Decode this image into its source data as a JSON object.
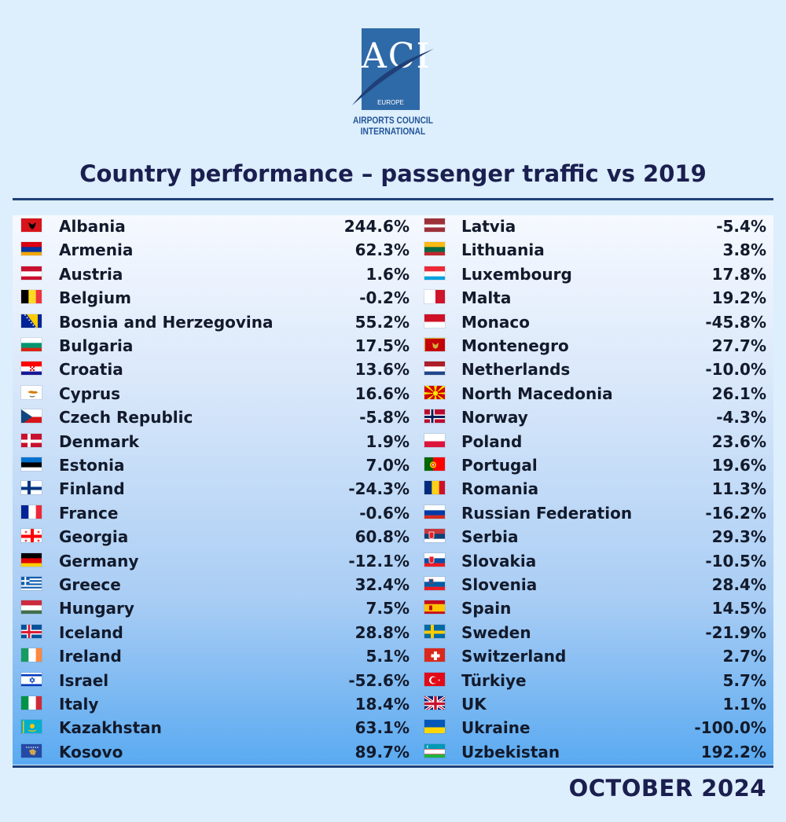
{
  "logo": {
    "mark": "ACI",
    "region": "EUROPE",
    "line1": "AIRPORTS COUNCIL",
    "line2": "INTERNATIONAL"
  },
  "title": "Country performance – passenger traffic vs 2019",
  "footer": "OCTOBER 2024",
  "chart_data": {
    "type": "table",
    "title": "Country performance – passenger traffic vs 2019",
    "columns": [
      [
        {
          "country": "Albania",
          "value": "244.6%",
          "flag": {
            "type": "solid",
            "colors": [
              "#d7141a"
            ],
            "emblem": "black-eagle"
          }
        },
        {
          "country": "Armenia",
          "value": "62.3%",
          "flag": {
            "type": "h",
            "colors": [
              "#d90012",
              "#0033a0",
              "#f2a800"
            ]
          }
        },
        {
          "country": "Austria",
          "value": "1.6%",
          "flag": {
            "type": "h",
            "colors": [
              "#c8102e",
              "#ffffff",
              "#c8102e"
            ]
          }
        },
        {
          "country": "Belgium",
          "value": "-0.2%",
          "flag": {
            "type": "v",
            "colors": [
              "#000000",
              "#fdda24",
              "#ef3340"
            ]
          }
        },
        {
          "country": "Bosnia and Herzegovina",
          "value": "55.2%",
          "flag": {
            "type": "diag",
            "colors": [
              "#002395",
              "#fecb00"
            ]
          }
        },
        {
          "country": "Bulgaria",
          "value": "17.5%",
          "flag": {
            "type": "h",
            "colors": [
              "#ffffff",
              "#00966e",
              "#d62612"
            ]
          }
        },
        {
          "country": "Croatia",
          "value": "13.6%",
          "flag": {
            "type": "h",
            "colors": [
              "#ff0000",
              "#ffffff",
              "#171796"
            ],
            "emblem": "checker"
          }
        },
        {
          "country": "Cyprus",
          "value": "16.6%",
          "flag": {
            "type": "solid",
            "colors": [
              "#ffffff"
            ],
            "emblem": "island"
          }
        },
        {
          "country": "Czech Republic",
          "value": "-5.8%",
          "flag": {
            "type": "czech",
            "colors": [
              "#ffffff",
              "#d7141a",
              "#11457e"
            ]
          }
        },
        {
          "country": "Denmark",
          "value": "1.9%",
          "flag": {
            "type": "cross",
            "colors": [
              "#c8102e",
              "#ffffff"
            ]
          }
        },
        {
          "country": "Estonia",
          "value": "7.0%",
          "flag": {
            "type": "h",
            "colors": [
              "#0072ce",
              "#000000",
              "#ffffff"
            ]
          }
        },
        {
          "country": "Finland",
          "value": "-24.3%",
          "flag": {
            "type": "cross",
            "colors": [
              "#ffffff",
              "#003580"
            ]
          }
        },
        {
          "country": "France",
          "value": "-0.6%",
          "flag": {
            "type": "v",
            "colors": [
              "#002395",
              "#ffffff",
              "#ed2939"
            ]
          }
        },
        {
          "country": "Georgia",
          "value": "60.8%",
          "flag": {
            "type": "georgia",
            "colors": [
              "#ffffff",
              "#ff0000"
            ]
          }
        },
        {
          "country": "Germany",
          "value": "-12.1%",
          "flag": {
            "type": "h",
            "colors": [
              "#000000",
              "#dd0000",
              "#ffce00"
            ]
          }
        },
        {
          "country": "Greece",
          "value": "32.4%",
          "flag": {
            "type": "greece",
            "colors": [
              "#0d5eaf",
              "#ffffff"
            ]
          }
        },
        {
          "country": "Hungary",
          "value": "7.5%",
          "flag": {
            "type": "h",
            "colors": [
              "#cd2a3e",
              "#ffffff",
              "#436f4d"
            ]
          }
        },
        {
          "country": "Iceland",
          "value": "28.8%",
          "flag": {
            "type": "cross2",
            "colors": [
              "#02529c",
              "#ffffff",
              "#dc1e35"
            ]
          }
        },
        {
          "country": "Ireland",
          "value": "5.1%",
          "flag": {
            "type": "v",
            "colors": [
              "#169b62",
              "#ffffff",
              "#ff883e"
            ]
          }
        },
        {
          "country": "Israel",
          "value": "-52.6%",
          "flag": {
            "type": "israel",
            "colors": [
              "#ffffff",
              "#0038b8"
            ]
          }
        },
        {
          "country": "Italy",
          "value": "18.4%",
          "flag": {
            "type": "v",
            "colors": [
              "#009246",
              "#ffffff",
              "#ce2b37"
            ]
          }
        },
        {
          "country": "Kazakhstan",
          "value": "63.1%",
          "flag": {
            "type": "solid",
            "colors": [
              "#00afca"
            ],
            "emblem": "sun"
          }
        },
        {
          "country": "Kosovo",
          "value": "89.7%",
          "flag": {
            "type": "solid",
            "colors": [
              "#244aa5"
            ],
            "emblem": "map"
          }
        }
      ],
      [
        {
          "country": "Latvia",
          "value": "-5.4%",
          "flag": {
            "type": "latvia",
            "colors": [
              "#9e3039",
              "#ffffff"
            ]
          }
        },
        {
          "country": "Lithuania",
          "value": "3.8%",
          "flag": {
            "type": "h",
            "colors": [
              "#fdb913",
              "#006a44",
              "#c1272d"
            ]
          }
        },
        {
          "country": "Luxembourg",
          "value": "17.8%",
          "flag": {
            "type": "h",
            "colors": [
              "#ed2939",
              "#ffffff",
              "#00a1de"
            ]
          }
        },
        {
          "country": "Malta",
          "value": "19.2%",
          "flag": {
            "type": "v2",
            "colors": [
              "#ffffff",
              "#cf142b"
            ]
          }
        },
        {
          "country": "Monaco",
          "value": "-45.8%",
          "flag": {
            "type": "h2",
            "colors": [
              "#ce1126",
              "#ffffff"
            ]
          }
        },
        {
          "country": "Montenegro",
          "value": "27.7%",
          "flag": {
            "type": "solid",
            "colors": [
              "#c40308"
            ],
            "emblem": "eagle-gold"
          }
        },
        {
          "country": "Netherlands",
          "value": "-10.0%",
          "flag": {
            "type": "h",
            "colors": [
              "#ae1c28",
              "#ffffff",
              "#21468b"
            ]
          }
        },
        {
          "country": "North Macedonia",
          "value": "26.1%",
          "flag": {
            "type": "solid",
            "colors": [
              "#d20000"
            ],
            "emblem": "sunrays"
          }
        },
        {
          "country": "Norway",
          "value": "-4.3%",
          "flag": {
            "type": "cross2",
            "colors": [
              "#ba0c2f",
              "#ffffff",
              "#00205b"
            ]
          }
        },
        {
          "country": "Poland",
          "value": "23.6%",
          "flag": {
            "type": "h2",
            "colors": [
              "#ffffff",
              "#dc143c"
            ]
          }
        },
        {
          "country": "Portugal",
          "value": "19.6%",
          "flag": {
            "type": "portugal",
            "colors": [
              "#006600",
              "#ff0000"
            ]
          }
        },
        {
          "country": "Romania",
          "value": "11.3%",
          "flag": {
            "type": "v",
            "colors": [
              "#002b7f",
              "#fcd116",
              "#ce1126"
            ]
          }
        },
        {
          "country": "Russian Federation",
          "value": "-16.2%",
          "flag": {
            "type": "h",
            "colors": [
              "#ffffff",
              "#0039a6",
              "#d52b1e"
            ]
          }
        },
        {
          "country": "Serbia",
          "value": "29.3%",
          "flag": {
            "type": "h",
            "colors": [
              "#c6363c",
              "#0c4076",
              "#ffffff"
            ],
            "emblem": "shield"
          }
        },
        {
          "country": "Slovakia",
          "value": "-10.5%",
          "flag": {
            "type": "h",
            "colors": [
              "#ffffff",
              "#0b4ea2",
              "#ee1c25"
            ],
            "emblem": "shield"
          }
        },
        {
          "country": "Slovenia",
          "value": "28.4%",
          "flag": {
            "type": "h",
            "colors": [
              "#ffffff",
              "#005da4",
              "#ed1c24"
            ],
            "emblem": "shield-small"
          }
        },
        {
          "country": "Spain",
          "value": "14.5%",
          "flag": {
            "type": "spain",
            "colors": [
              "#c60b1e",
              "#ffc400"
            ]
          }
        },
        {
          "country": "Sweden",
          "value": "-21.9%",
          "flag": {
            "type": "cross",
            "colors": [
              "#006aa7",
              "#fecc00"
            ]
          }
        },
        {
          "country": "Switzerland",
          "value": "2.7%",
          "flag": {
            "type": "swiss",
            "colors": [
              "#da291c",
              "#ffffff"
            ]
          }
        },
        {
          "country": "Türkiye",
          "value": "5.7%",
          "flag": {
            "type": "solid",
            "colors": [
              "#e30a17"
            ],
            "emblem": "crescent"
          }
        },
        {
          "country": "UK",
          "value": "1.1%",
          "flag": {
            "type": "uk",
            "colors": [
              "#012169",
              "#ffffff",
              "#c8102e"
            ]
          }
        },
        {
          "country": "Ukraine",
          "value": "-100.0%",
          "flag": {
            "type": "h2",
            "colors": [
              "#0057b7",
              "#ffd700"
            ]
          }
        },
        {
          "country": "Uzbekistan",
          "value": "192.2%",
          "flag": {
            "type": "h",
            "colors": [
              "#1eb53a",
              "#ffffff",
              "#0099b5"
            ],
            "reverse": true
          }
        }
      ]
    ]
  }
}
